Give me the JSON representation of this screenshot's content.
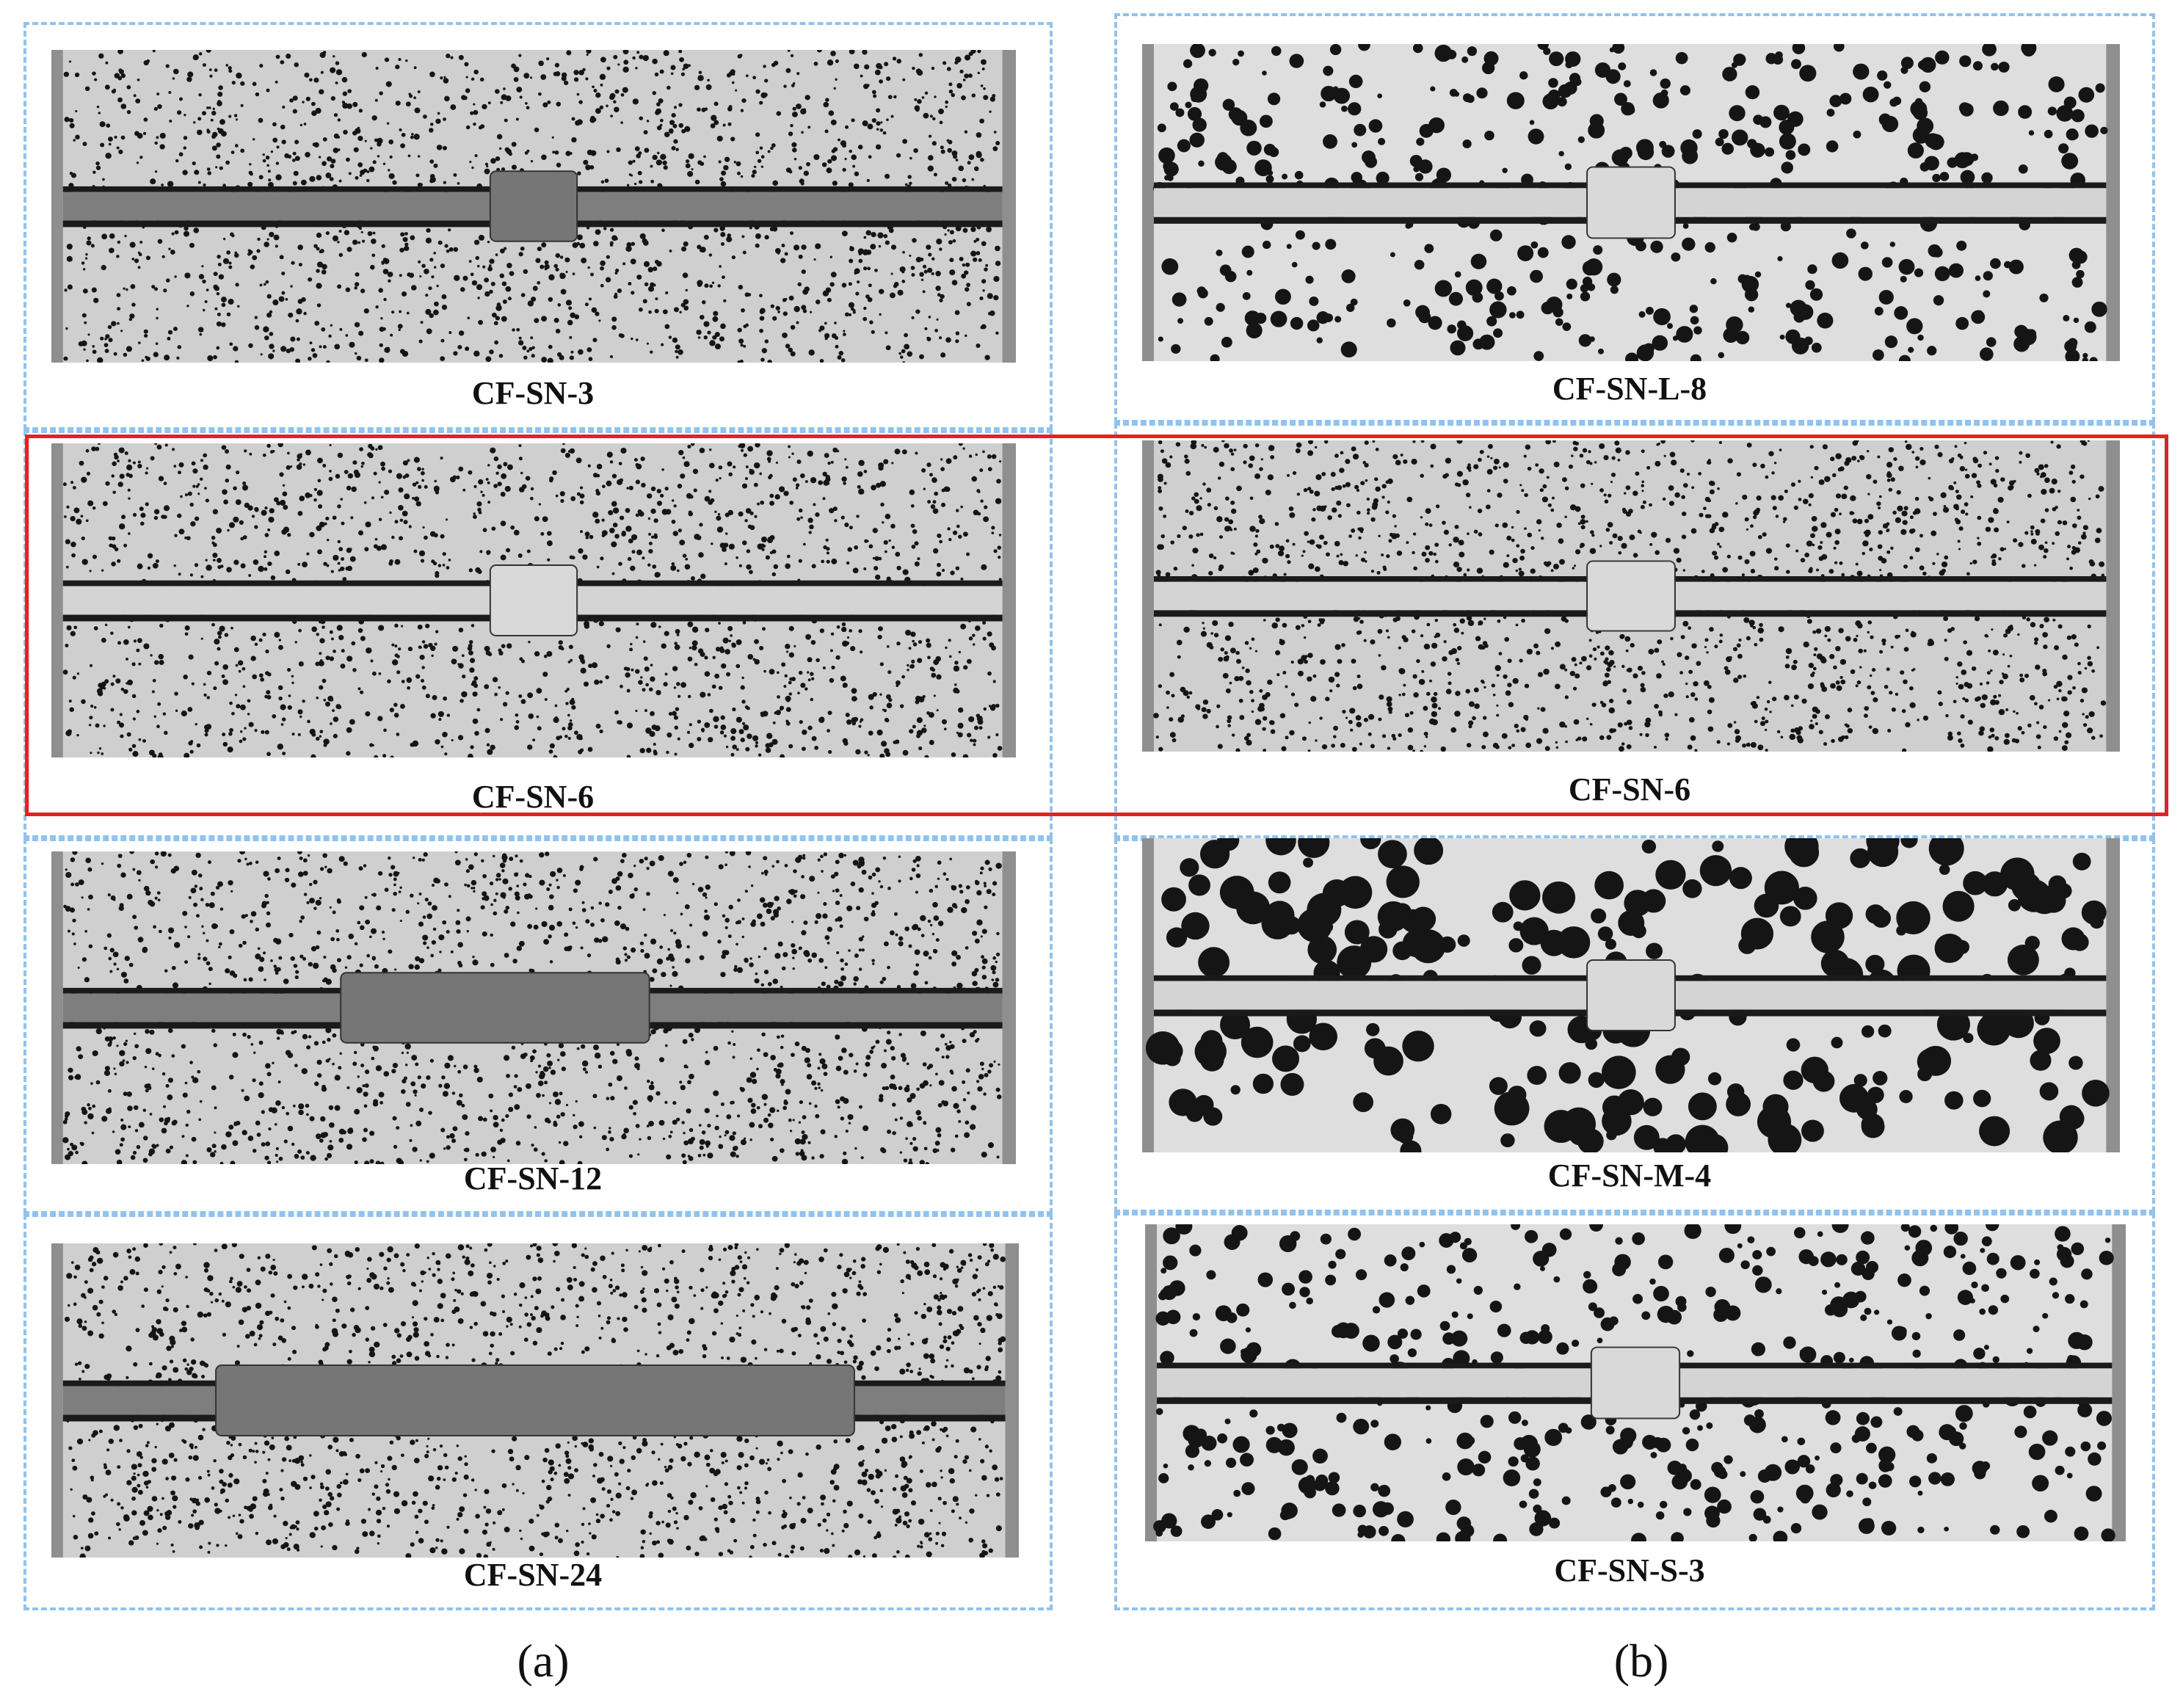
{
  "figure": {
    "left_group_label": "(a)",
    "right_group_label": "(b)"
  },
  "panels": [
    {
      "id": "a1",
      "caption": "CF-SN-3",
      "style": "fine",
      "tone": "dark",
      "block": "short"
    },
    {
      "id": "a2",
      "caption": "CF-SN-6",
      "style": "fine",
      "tone": "light",
      "block": "short"
    },
    {
      "id": "a3",
      "caption": "CF-SN-12",
      "style": "fine",
      "tone": "dark",
      "block": "medium"
    },
    {
      "id": "a4",
      "caption": "CF-SN-24",
      "style": "fine",
      "tone": "dark",
      "block": "long"
    },
    {
      "id": "b1",
      "caption": "CF-SN-L-8",
      "style": "coarse",
      "tone": "light",
      "block": "short"
    },
    {
      "id": "b2",
      "caption": "CF-SN-6",
      "style": "fine",
      "tone": "light",
      "block": "short"
    },
    {
      "id": "b3",
      "caption": "CF-SN-M-4",
      "style": "blotchy",
      "tone": "light",
      "block": "short"
    },
    {
      "id": "b4",
      "caption": "CF-SN-S-3",
      "style": "coarse",
      "tone": "light",
      "block": "short"
    }
  ],
  "colors": {
    "frame_border": "#8fc3f2",
    "highlight_border": "#e52222",
    "speckle_background": "#d9d9d9",
    "speckle_dot": "#151515"
  }
}
